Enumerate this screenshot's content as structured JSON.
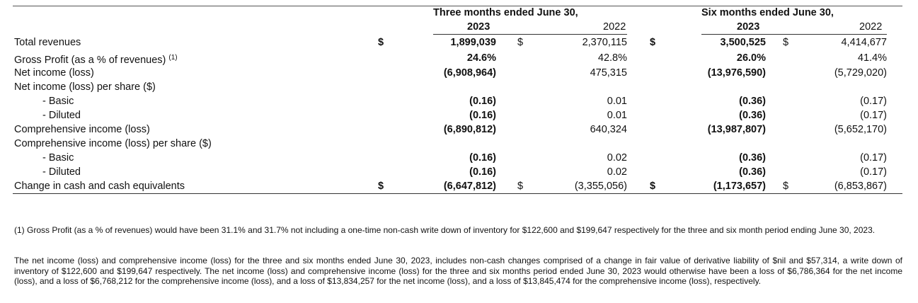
{
  "header": {
    "three_months": "Three months ended June 30,",
    "six_months": "Six months ended June 30,",
    "y2023_a": "2023",
    "y2022_a": "2022",
    "y2023_b": "2023",
    "y2022_b": "2022"
  },
  "rows": [
    {
      "label": "Total revenues",
      "sup": "",
      "d1": "$",
      "c1": "1,899,039",
      "d2": "$",
      "c2": "2,370,115",
      "d3": "$",
      "c3": "3,500,525",
      "d4": "$",
      "c4": "4,414,677"
    },
    {
      "label": "Gross Profit (as a % of revenues)",
      "sup": "(1)",
      "d1": "",
      "c1": "24.6%",
      "d2": "",
      "c2": "42.8%",
      "d3": "",
      "c3": "26.0%",
      "d4": "",
      "c4": "41.4%"
    },
    {
      "label": "Net income (loss)",
      "sup": "",
      "d1": "",
      "c1": "(6,908,964)",
      "d2": "",
      "c2": "475,315",
      "d3": "",
      "c3": "(13,976,590)",
      "d4": "",
      "c4": "(5,729,020)"
    },
    {
      "label": "Net income (loss) per share ($)",
      "sup": "",
      "d1": "",
      "c1": "",
      "d2": "",
      "c2": "",
      "d3": "",
      "c3": "",
      "d4": "",
      "c4": ""
    },
    {
      "label": "- Basic",
      "sup": "",
      "d1": "",
      "c1": "(0.16)",
      "d2": "",
      "c2": "0.01",
      "d3": "",
      "c3": "(0.36)",
      "d4": "",
      "c4": "(0.17)"
    },
    {
      "label": "- Diluted",
      "sup": "",
      "d1": "",
      "c1": "(0.16)",
      "d2": "",
      "c2": "0.01",
      "d3": "",
      "c3": "(0.36)",
      "d4": "",
      "c4": "(0.17)"
    },
    {
      "label": "Comprehensive income (loss)",
      "sup": "",
      "d1": "",
      "c1": "(6,890,812)",
      "d2": "",
      "c2": "640,324",
      "d3": "",
      "c3": "(13,987,807)",
      "d4": "",
      "c4": "(5,652,170)"
    },
    {
      "label": "Comprehensive income (loss) per share ($)",
      "sup": "",
      "d1": "",
      "c1": "",
      "d2": "",
      "c2": "",
      "d3": "",
      "c3": "",
      "d4": "",
      "c4": ""
    },
    {
      "label": "- Basic",
      "sup": "",
      "d1": "",
      "c1": "(0.16)",
      "d2": "",
      "c2": "0.02",
      "d3": "",
      "c3": "(0.36)",
      "d4": "",
      "c4": "(0.17)"
    },
    {
      "label": "- Diluted",
      "sup": "",
      "d1": "",
      "c1": "(0.16)",
      "d2": "",
      "c2": "0.02",
      "d3": "",
      "c3": "(0.36)",
      "d4": "",
      "c4": "(0.17)"
    },
    {
      "label": "Change in cash and cash equivalents",
      "sup": "",
      "d1": "$",
      "c1": "(6,647,812)",
      "d2": "$",
      "c2": "(3,355,056)",
      "d3": "$",
      "c3": "(1,173,657)",
      "d4": "$",
      "c4": "(6,853,867)"
    }
  ],
  "footnotes": {
    "note1": "(1) Gross Profit (as a % of revenues) would have been 31.1% and 31.7% not including a one-time non-cash write down of inventory for $122,600 and $199,647 respectively for the three and six month period ending June 30, 2023.",
    "note2": "The net income (loss) and comprehensive income (loss) for the three and six months ended June 30, 2023, includes non-cash changes comprised of a change in fair value of derivative liability of $nil and $57,314, a write down of inventory of $122,600 and $199,647 respectively. The net income (loss) and comprehensive income (loss) for the three and six months period ended June 30, 2023 would otherwise have been a loss of $6,786,364 for the net income (loss), and a loss of $6,768,212 for the comprehensive income (loss), and a loss of $13,834,257 for the net income (loss), and a loss of $13,845,474 for the comprehensive income (loss), respectively."
  }
}
